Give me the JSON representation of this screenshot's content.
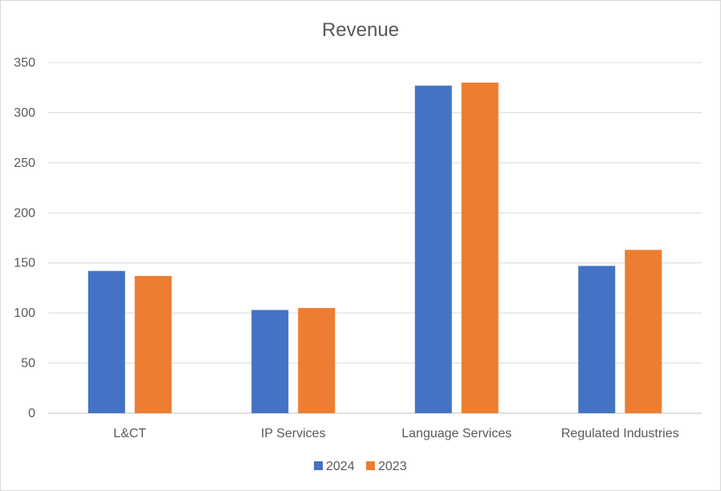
{
  "chart_data": {
    "type": "bar",
    "title": "Revenue",
    "categories": [
      "L&CT",
      "IP Services",
      "Language Services",
      "Regulated Industries"
    ],
    "series": [
      {
        "name": "2024",
        "values": [
          142,
          103,
          327,
          147
        ],
        "color": "#4472c4"
      },
      {
        "name": "2023",
        "values": [
          137,
          105,
          330,
          163
        ],
        "color": "#ed7d31"
      }
    ],
    "ylim": [
      0,
      350
    ],
    "yticks": [
      0,
      50,
      100,
      150,
      200,
      250,
      300,
      350
    ],
    "grid": true,
    "legend": "bottom"
  }
}
